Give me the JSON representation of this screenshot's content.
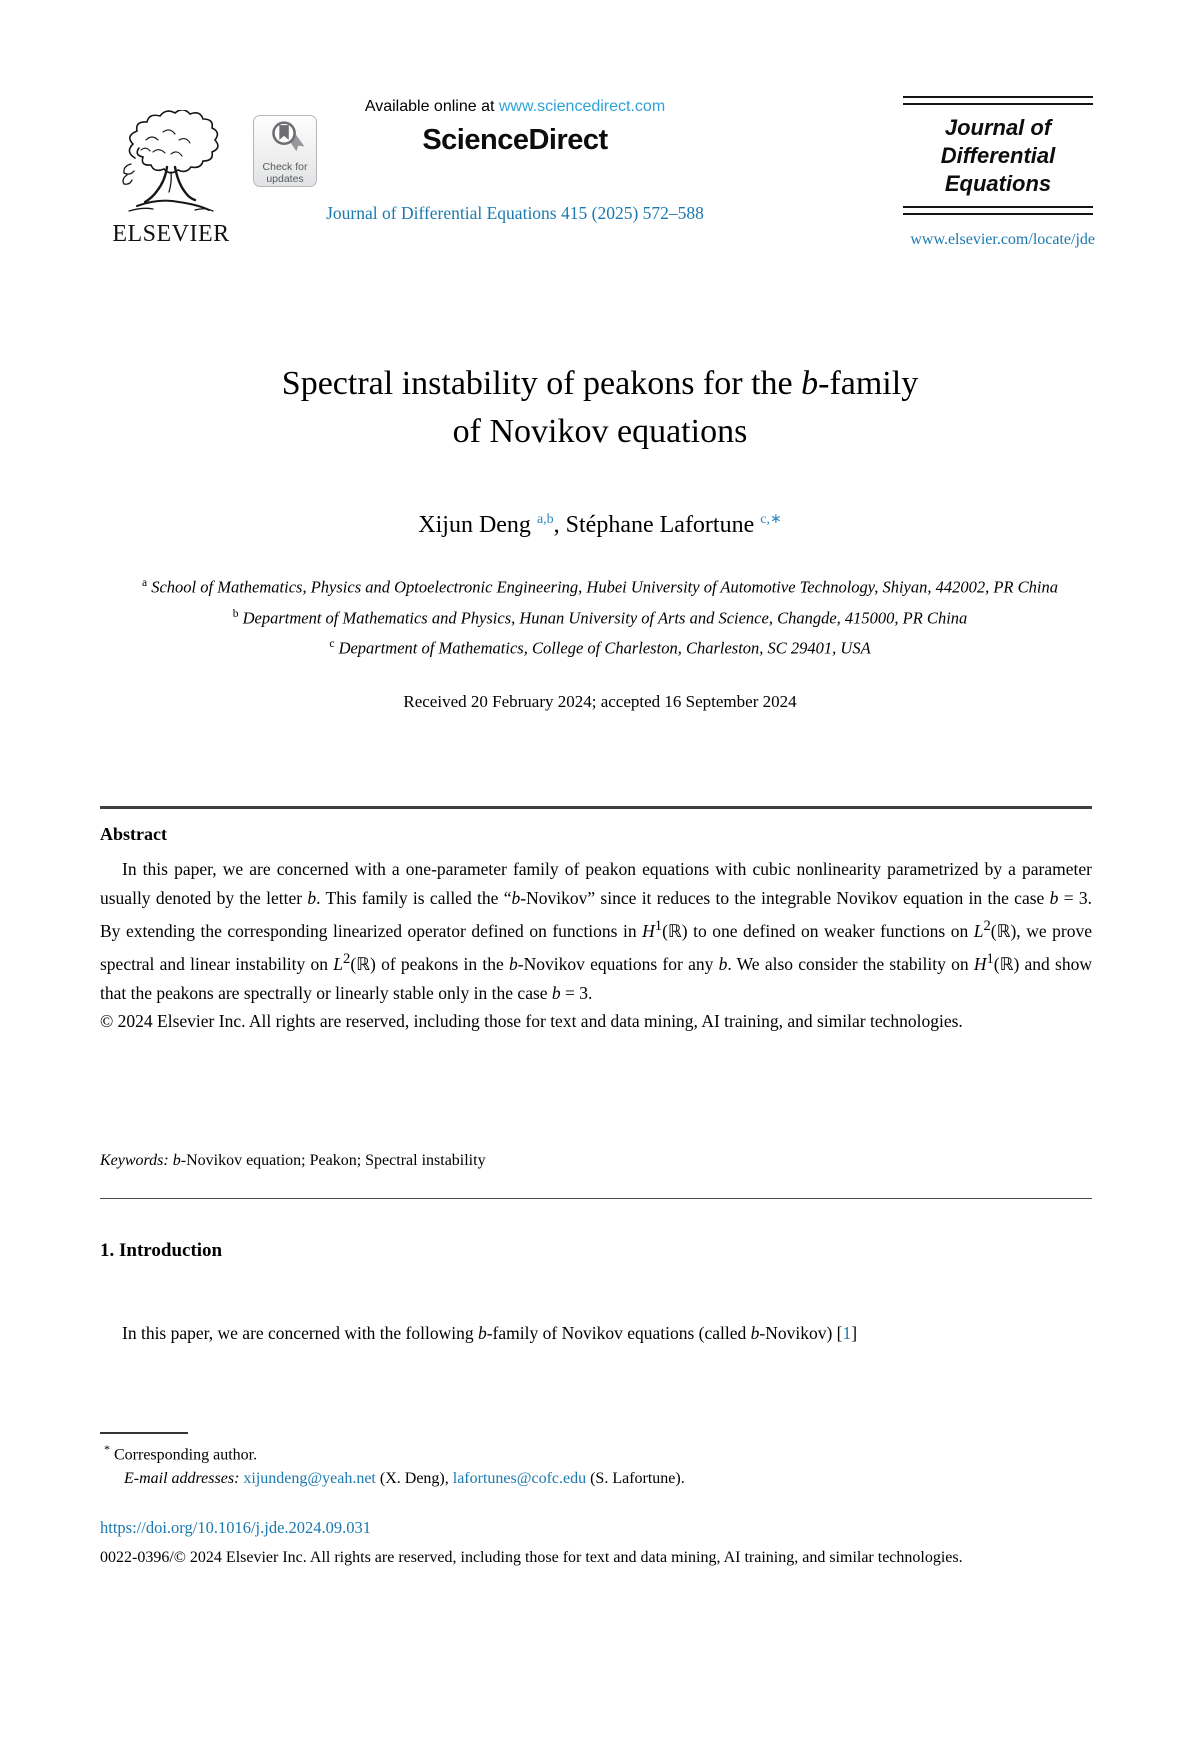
{
  "colors": {
    "link": "#1b79af",
    "sciencedirect_link": "#2ba3d9",
    "superscript_blue": "#2e86c1",
    "badge_text": "#58595b",
    "rule": "#3f3f3f"
  },
  "header": {
    "elsevier_wordmark": "ELSEVIER",
    "check_badge": {
      "line1": "Check for",
      "line2": "updates"
    },
    "available_prefix": "Available online at ",
    "sciencedirect_url": "www.sciencedirect.com",
    "sciencedirect_logo": "ScienceDirect",
    "citation": "Journal of Differential Equations 415 (2025) 572–588",
    "journal_box": {
      "line1": "Journal of",
      "line2": "Differential",
      "line3": "Equations"
    },
    "locate_url": "www.elsevier.com/locate/jde"
  },
  "article": {
    "title_line1": "Spectral instability of peakons for the *b*-family",
    "title_line2": "of Novikov equations",
    "authors": [
      {
        "name": "Xijun Deng ",
        "sup": "a,b"
      },
      {
        "name": "Stéphane Lafortune ",
        "sup": "c,∗"
      }
    ],
    "authors_separator": ", ",
    "affiliations": [
      {
        "sup": "a",
        "text": " School of Mathematics, Physics and Optoelectronic Engineering, Hubei University of Automotive Technology, Shiyan, 442002, PR China"
      },
      {
        "sup": "b",
        "text": " Department of Mathematics and Physics, Hunan University of Arts and Science, Changde, 415000, PR China"
      },
      {
        "sup": "c",
        "text": " Department of Mathematics, College of Charleston, Charleston, SC 29401, USA"
      }
    ],
    "received": "Received 20 February 2024; accepted 16 September 2024"
  },
  "abstract": {
    "heading": "Abstract",
    "body": "In this paper, we are concerned with a one-parameter family of peakon equations with cubic nonlinearity parametrized by a parameter usually denoted by the letter *b*. This family is called the “*b*-Novikov” since it reduces to the integrable Novikov equation in the case *b* = 3. By extending the corresponding linearized operator defined on functions in *H*^1^(ℝ) to one defined on weaker functions on *L*^2^(ℝ), we prove spectral and linear instability on *L*^2^(ℝ) of peakons in the *b*-Novikov equations for any *b*. We also consider the stability on *H*^1^(ℝ) and show that the peakons are spectrally or linearly stable only in the case *b* = 3.",
    "copyright": "© 2024 Elsevier Inc. All rights are reserved, including those for text and data mining, AI training, and similar technologies.",
    "keywords_label": "Keywords:",
    "keywords_text": " *b*-Novikov equation; Peakon; Spectral instability"
  },
  "intro": {
    "heading": "1. Introduction",
    "para_text": "In this paper, we are concerned with the following *b*-family of Novikov equations (called *b*-Novikov) [",
    "ref_number": "1",
    "ref_close": "]"
  },
  "footnotes": {
    "corresponding_sup": "*",
    "corresponding_text": " Corresponding author.",
    "email_label": "E-mail addresses: ",
    "email1": "xijundeng@yeah.net",
    "email1_suffix": " (X. Deng), ",
    "email2": "lafortunes@cofc.edu",
    "email2_suffix": " (S. Lafortune).",
    "doi": "https://doi.org/10.1016/j.jde.2024.09.031",
    "issn_line": "0022-0396/© 2024 Elsevier Inc. All rights are reserved, including those for text and data mining, AI training, and similar technologies."
  }
}
